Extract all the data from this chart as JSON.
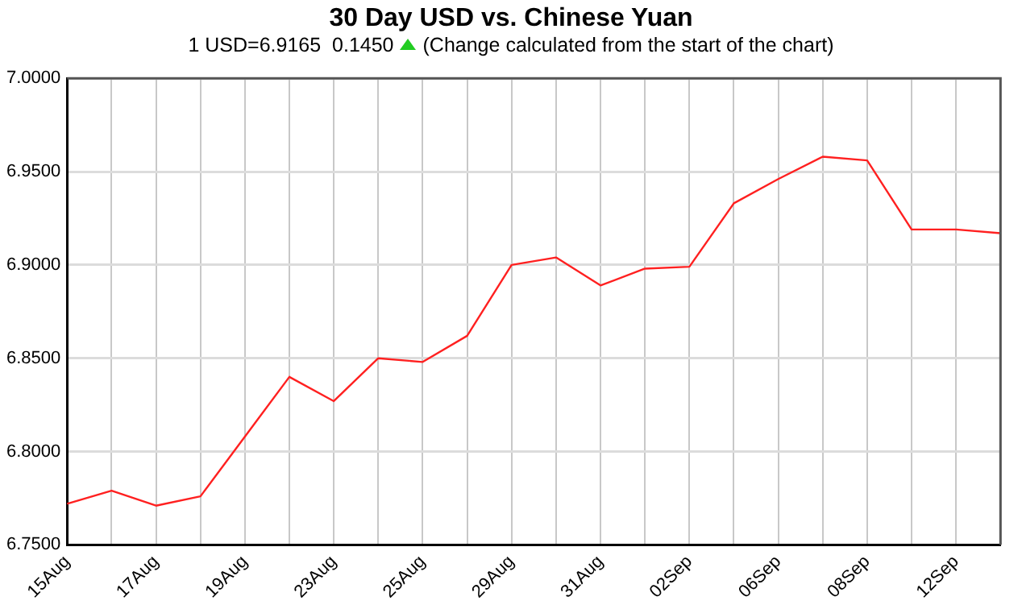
{
  "chart_data": {
    "type": "line",
    "title": "30 Day USD vs. Chinese Yuan",
    "subtitle": "1 USD=6.9165  0.1450",
    "annotations": [
      "(Change calculated from the start of the chart)"
    ],
    "categories": [
      "15Aug",
      null,
      "17Aug",
      null,
      "19Aug",
      null,
      "23Aug",
      null,
      "25Aug",
      null,
      "29Aug",
      null,
      "31Aug",
      null,
      "02Sep",
      null,
      "06Sep",
      null,
      "08Sep",
      null,
      "12Sep",
      null
    ],
    "series": [
      {
        "color": "#ff2020",
        "values": [
          6.772,
          6.779,
          6.771,
          6.776,
          6.808,
          6.84,
          6.827,
          6.85,
          6.848,
          6.862,
          6.9,
          6.904,
          6.889,
          6.898,
          6.899,
          6.933,
          6.946,
          6.958,
          6.956,
          6.919,
          6.919,
          6.917
        ]
      }
    ],
    "ylim": [
      6.75,
      7.0
    ],
    "yticks": [
      {
        "value": 6.75,
        "label": "6.7500"
      },
      {
        "value": 6.8,
        "label": "6.8000"
      },
      {
        "value": 6.85,
        "label": "6.8500"
      },
      {
        "value": 6.9,
        "label": "6.9000"
      },
      {
        "value": 6.95,
        "label": "6.9500"
      },
      {
        "value": 7.0,
        "label": "7.0000"
      }
    ],
    "grid": true,
    "legend": false,
    "marker": "none",
    "line_style": "solid"
  }
}
